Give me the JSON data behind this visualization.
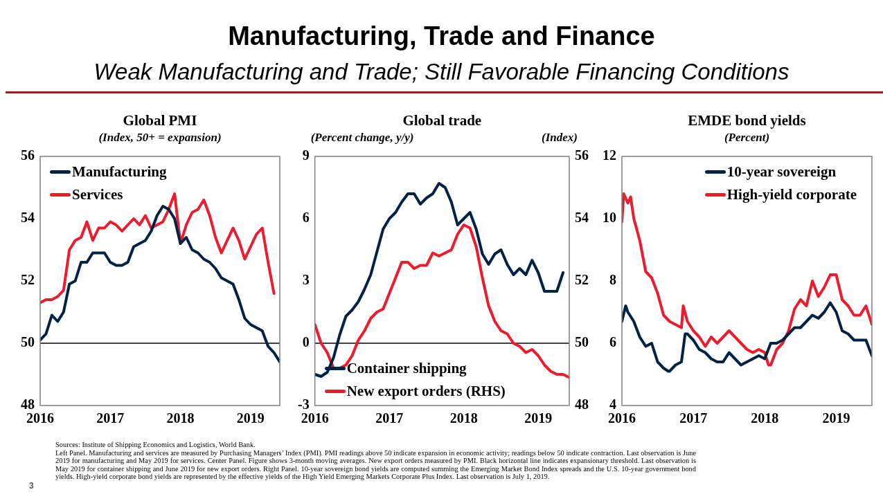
{
  "chart_data": [
    {
      "type": "other",
      "title": "Manufacturing, Trade and Finance",
      "subtitle": "Weak Manufacturing and Trade; Still Favorable Financing Conditions"
    },
    {
      "type": "line",
      "title": "Global PMI",
      "subtitle": "(Index, 50+ = expansion)",
      "x": [
        "2016-01",
        "2016-02",
        "2016-03",
        "2016-04",
        "2016-05",
        "2016-06",
        "2016-07",
        "2016-08",
        "2016-09",
        "2016-10",
        "2016-11",
        "2016-12",
        "2017-01",
        "2017-02",
        "2017-03",
        "2017-04",
        "2017-05",
        "2017-06",
        "2017-07",
        "2017-08",
        "2017-09",
        "2017-10",
        "2017-11",
        "2017-12",
        "2018-01",
        "2018-02",
        "2018-03",
        "2018-04",
        "2018-05",
        "2018-06",
        "2018-07",
        "2018-08",
        "2018-09",
        "2018-10",
        "2018-11",
        "2018-12",
        "2019-01",
        "2019-02",
        "2019-03",
        "2019-04",
        "2019-05",
        "2019-06"
      ],
      "series": [
        {
          "name": "Manufacturing",
          "color": "#002345",
          "values": [
            50.1,
            50.3,
            50.9,
            50.7,
            51.0,
            51.9,
            52.0,
            52.6,
            52.6,
            52.9,
            52.9,
            52.9,
            52.6,
            52.5,
            52.5,
            52.6,
            53.1,
            53.2,
            53.3,
            53.6,
            54.1,
            54.4,
            54.3,
            54.0,
            53.2,
            53.4,
            53.0,
            52.9,
            52.7,
            52.6,
            52.4,
            52.1,
            52.0,
            51.9,
            51.4,
            50.8,
            50.6,
            50.5,
            50.4,
            49.9,
            49.7,
            49.4
          ]
        },
        {
          "name": "Services",
          "color": "#ec1c2e",
          "values": [
            51.3,
            51.4,
            51.4,
            51.5,
            51.7,
            53.0,
            53.3,
            53.4,
            53.9,
            53.3,
            53.7,
            53.7,
            53.9,
            53.8,
            53.6,
            53.8,
            54.0,
            53.8,
            54.1,
            53.7,
            53.8,
            53.9,
            54.3,
            54.8,
            53.2,
            53.8,
            54.2,
            54.3,
            54.6,
            54.1,
            53.4,
            52.9,
            53.3,
            53.7,
            53.3,
            52.7,
            53.1,
            53.5,
            53.7,
            52.6,
            51.6,
            null
          ]
        }
      ],
      "xlim": [
        "2016-01",
        "2019-06"
      ],
      "xticks": [
        {
          "value": "2016-01",
          "label": "2016"
        },
        {
          "value": "2017-01",
          "label": "2017"
        },
        {
          "value": "2018-01",
          "label": "2018"
        },
        {
          "value": "2019-01",
          "label": "2019"
        }
      ],
      "ylim": [
        48,
        56
      ],
      "yticks": [
        48,
        50,
        52,
        54,
        56
      ],
      "legend": "top left",
      "ref_lines": [
        {
          "axis": "y",
          "value": 50,
          "color": "#000000"
        }
      ]
    },
    {
      "type": "line",
      "title": "Global trade",
      "ylabel": "(Percent change, y/y)",
      "y2label": "(Index)",
      "x": [
        "2016-01",
        "2016-02",
        "2016-03",
        "2016-04",
        "2016-05",
        "2016-06",
        "2016-07",
        "2016-08",
        "2016-09",
        "2016-10",
        "2016-11",
        "2016-12",
        "2017-01",
        "2017-02",
        "2017-03",
        "2017-04",
        "2017-05",
        "2017-06",
        "2017-07",
        "2017-08",
        "2017-09",
        "2017-10",
        "2017-11",
        "2017-12",
        "2018-01",
        "2018-02",
        "2018-03",
        "2018-04",
        "2018-05",
        "2018-06",
        "2018-07",
        "2018-08",
        "2018-09",
        "2018-10",
        "2018-11",
        "2018-12",
        "2019-01",
        "2019-02",
        "2019-03",
        "2019-04",
        "2019-05",
        "2019-06"
      ],
      "series": [
        {
          "name": "Container shipping",
          "color": "#002345",
          "values": [
            -1.5,
            -1.6,
            -1.4,
            -0.7,
            0.4,
            1.3,
            1.6,
            2.0,
            2.6,
            3.3,
            4.4,
            5.5,
            6.0,
            6.3,
            6.8,
            7.2,
            7.2,
            6.7,
            7.0,
            7.2,
            7.7,
            7.5,
            6.8,
            5.7,
            6.0,
            6.3,
            5.5,
            4.3,
            3.8,
            4.3,
            4.5,
            3.8,
            3.3,
            3.6,
            3.3,
            4.0,
            3.4,
            2.5,
            2.5,
            2.5,
            3.4,
            null
          ]
        },
        {
          "name": "New export orders (RHS)",
          "color": "#ec1c2e",
          "axis": "y2",
          "values": [
            50.6,
            50.0,
            49.7,
            49.2,
            49.2,
            49.3,
            49.6,
            50.1,
            50.4,
            50.8,
            51.0,
            51.1,
            51.6,
            52.1,
            52.6,
            52.6,
            52.4,
            52.5,
            52.5,
            52.9,
            52.8,
            52.9,
            53.0,
            53.5,
            53.8,
            53.7,
            53.1,
            52.1,
            51.2,
            50.7,
            50.4,
            50.3,
            50.0,
            49.9,
            49.7,
            49.8,
            49.6,
            49.3,
            49.1,
            49.0,
            49.0,
            48.9
          ]
        }
      ],
      "xlim": [
        "2016-01",
        "2019-06"
      ],
      "xticks": [
        {
          "value": "2016-01",
          "label": "2016"
        },
        {
          "value": "2017-01",
          "label": "2017"
        },
        {
          "value": "2018-01",
          "label": "2018"
        },
        {
          "value": "2019-01",
          "label": "2019"
        }
      ],
      "ylim": [
        -3,
        9
      ],
      "yticks": [
        -3,
        0,
        3,
        6,
        9
      ],
      "y2lim": [
        48,
        56
      ],
      "y2ticks": [
        48,
        50,
        52,
        54,
        56
      ],
      "legend": "bottom left",
      "ref_lines": [
        {
          "axis": "y",
          "value": 0,
          "color": "#000000"
        }
      ]
    },
    {
      "type": "line",
      "title": "EMDE bond yields",
      "subtitle": "(Percent)",
      "series": [
        {
          "name": "10-year sovereign",
          "color": "#002345",
          "x": [
            "2016-01-01",
            "2016-01-20",
            "2016-02-01",
            "2016-03-01",
            "2016-04-01",
            "2016-05-01",
            "2016-06-01",
            "2016-07-01",
            "2016-08-01",
            "2016-08-25",
            "2016-09-01",
            "2016-10-01",
            "2016-11-01",
            "2016-11-20",
            "2016-12-01",
            "2017-01-01",
            "2017-02-01",
            "2017-03-01",
            "2017-04-01",
            "2017-05-01",
            "2017-06-01",
            "2017-07-01",
            "2017-08-01",
            "2017-09-01",
            "2017-10-01",
            "2017-11-01",
            "2017-12-01",
            "2018-01-01",
            "2018-02-01",
            "2018-03-01",
            "2018-04-01",
            "2018-05-01",
            "2018-06-01",
            "2018-07-01",
            "2018-08-01",
            "2018-09-01",
            "2018-10-01",
            "2018-11-01",
            "2018-12-01",
            "2019-01-01",
            "2019-02-01",
            "2019-03-01",
            "2019-04-01",
            "2019-05-01",
            "2019-06-01",
            "2019-07-01"
          ],
          "values": [
            6.7,
            7.2,
            7.0,
            6.7,
            6.2,
            5.9,
            6.0,
            5.4,
            5.2,
            5.1,
            5.1,
            5.3,
            5.4,
            6.3,
            6.3,
            6.1,
            5.8,
            5.7,
            5.5,
            5.4,
            5.4,
            5.7,
            5.5,
            5.3,
            5.4,
            5.5,
            5.6,
            5.5,
            6.0,
            6.0,
            6.1,
            6.3,
            6.5,
            6.5,
            6.7,
            6.9,
            6.8,
            7.0,
            7.3,
            7.0,
            6.4,
            6.3,
            6.1,
            6.1,
            6.1,
            5.6
          ]
        },
        {
          "name": "High-yield corporate",
          "color": "#ec1c2e",
          "x": [
            "2016-01-01",
            "2016-01-10",
            "2016-02-01",
            "2016-02-15",
            "2016-03-01",
            "2016-04-01",
            "2016-05-01",
            "2016-06-01",
            "2016-07-01",
            "2016-08-01",
            "2016-09-01",
            "2016-10-01",
            "2016-11-01",
            "2016-11-10",
            "2016-12-01",
            "2017-01-01",
            "2017-02-01",
            "2017-03-01",
            "2017-04-01",
            "2017-05-01",
            "2017-06-01",
            "2017-07-01",
            "2017-08-01",
            "2017-09-01",
            "2017-10-01",
            "2017-11-01",
            "2017-12-01",
            "2018-01-01",
            "2018-01-20",
            "2018-02-01",
            "2018-03-01",
            "2018-04-01",
            "2018-05-01",
            "2018-06-01",
            "2018-07-01",
            "2018-08-01",
            "2018-09-01",
            "2018-10-01",
            "2018-11-01",
            "2018-12-01",
            "2019-01-01",
            "2019-02-01",
            "2019-03-01",
            "2019-04-01",
            "2019-05-01",
            "2019-06-01",
            "2019-07-01"
          ],
          "values": [
            9.9,
            10.8,
            10.5,
            10.7,
            10.0,
            9.3,
            8.3,
            8.1,
            7.6,
            6.9,
            6.7,
            6.6,
            6.5,
            7.2,
            6.7,
            6.4,
            6.2,
            5.9,
            6.2,
            6.0,
            6.2,
            6.4,
            6.2,
            6.0,
            5.8,
            5.7,
            5.8,
            5.7,
            5.3,
            5.3,
            5.8,
            6.0,
            6.4,
            7.1,
            7.4,
            7.2,
            8.0,
            7.5,
            7.8,
            8.2,
            8.2,
            7.4,
            7.2,
            6.9,
            6.9,
            7.2,
            6.6
          ]
        }
      ],
      "xlim": [
        "2016-01-01",
        "2019-07-01"
      ],
      "xticks": [
        {
          "value": "2016-01-01",
          "label": "2016"
        },
        {
          "value": "2017-01-01",
          "label": "2017"
        },
        {
          "value": "2018-01-01",
          "label": "2018"
        },
        {
          "value": "2019-01-01",
          "label": "2019"
        }
      ],
      "ylim": [
        4,
        12
      ],
      "yticks": [
        4,
        6,
        8,
        10,
        12
      ],
      "legend": "top right"
    },
    {
      "type": "other",
      "annotations": [
        "Sources: Institute of Shipping Economics and Logistics, World Bank.",
        "Left Panel. Manufacturing and services are measured by Purchasing Managers’ Index (PMI). PMI readings above 50 indicate expansion in economic activity; readings below 50 indicate contraction. Last observation is June 2019 for manufacturing and May 2019 for services. Center Panel. Figure shows 3-month moving averages. New export orders measured by PMI. Black horizontal line indicates expansionary threshold. Last observation is May 2019 for container shipping and June 2019 for new export orders. Right Panel. 10-year sovereign bond yields are computed summing the Emerging Market Bond Index spreads and the U.S. 10-year government bond yields. High-yield corporate bond yields are represented by the effective yields of the High Yield Emerging Markets Corporate Plus Index. Last observation is July 1, 2019.",
        "3"
      ]
    }
  ]
}
